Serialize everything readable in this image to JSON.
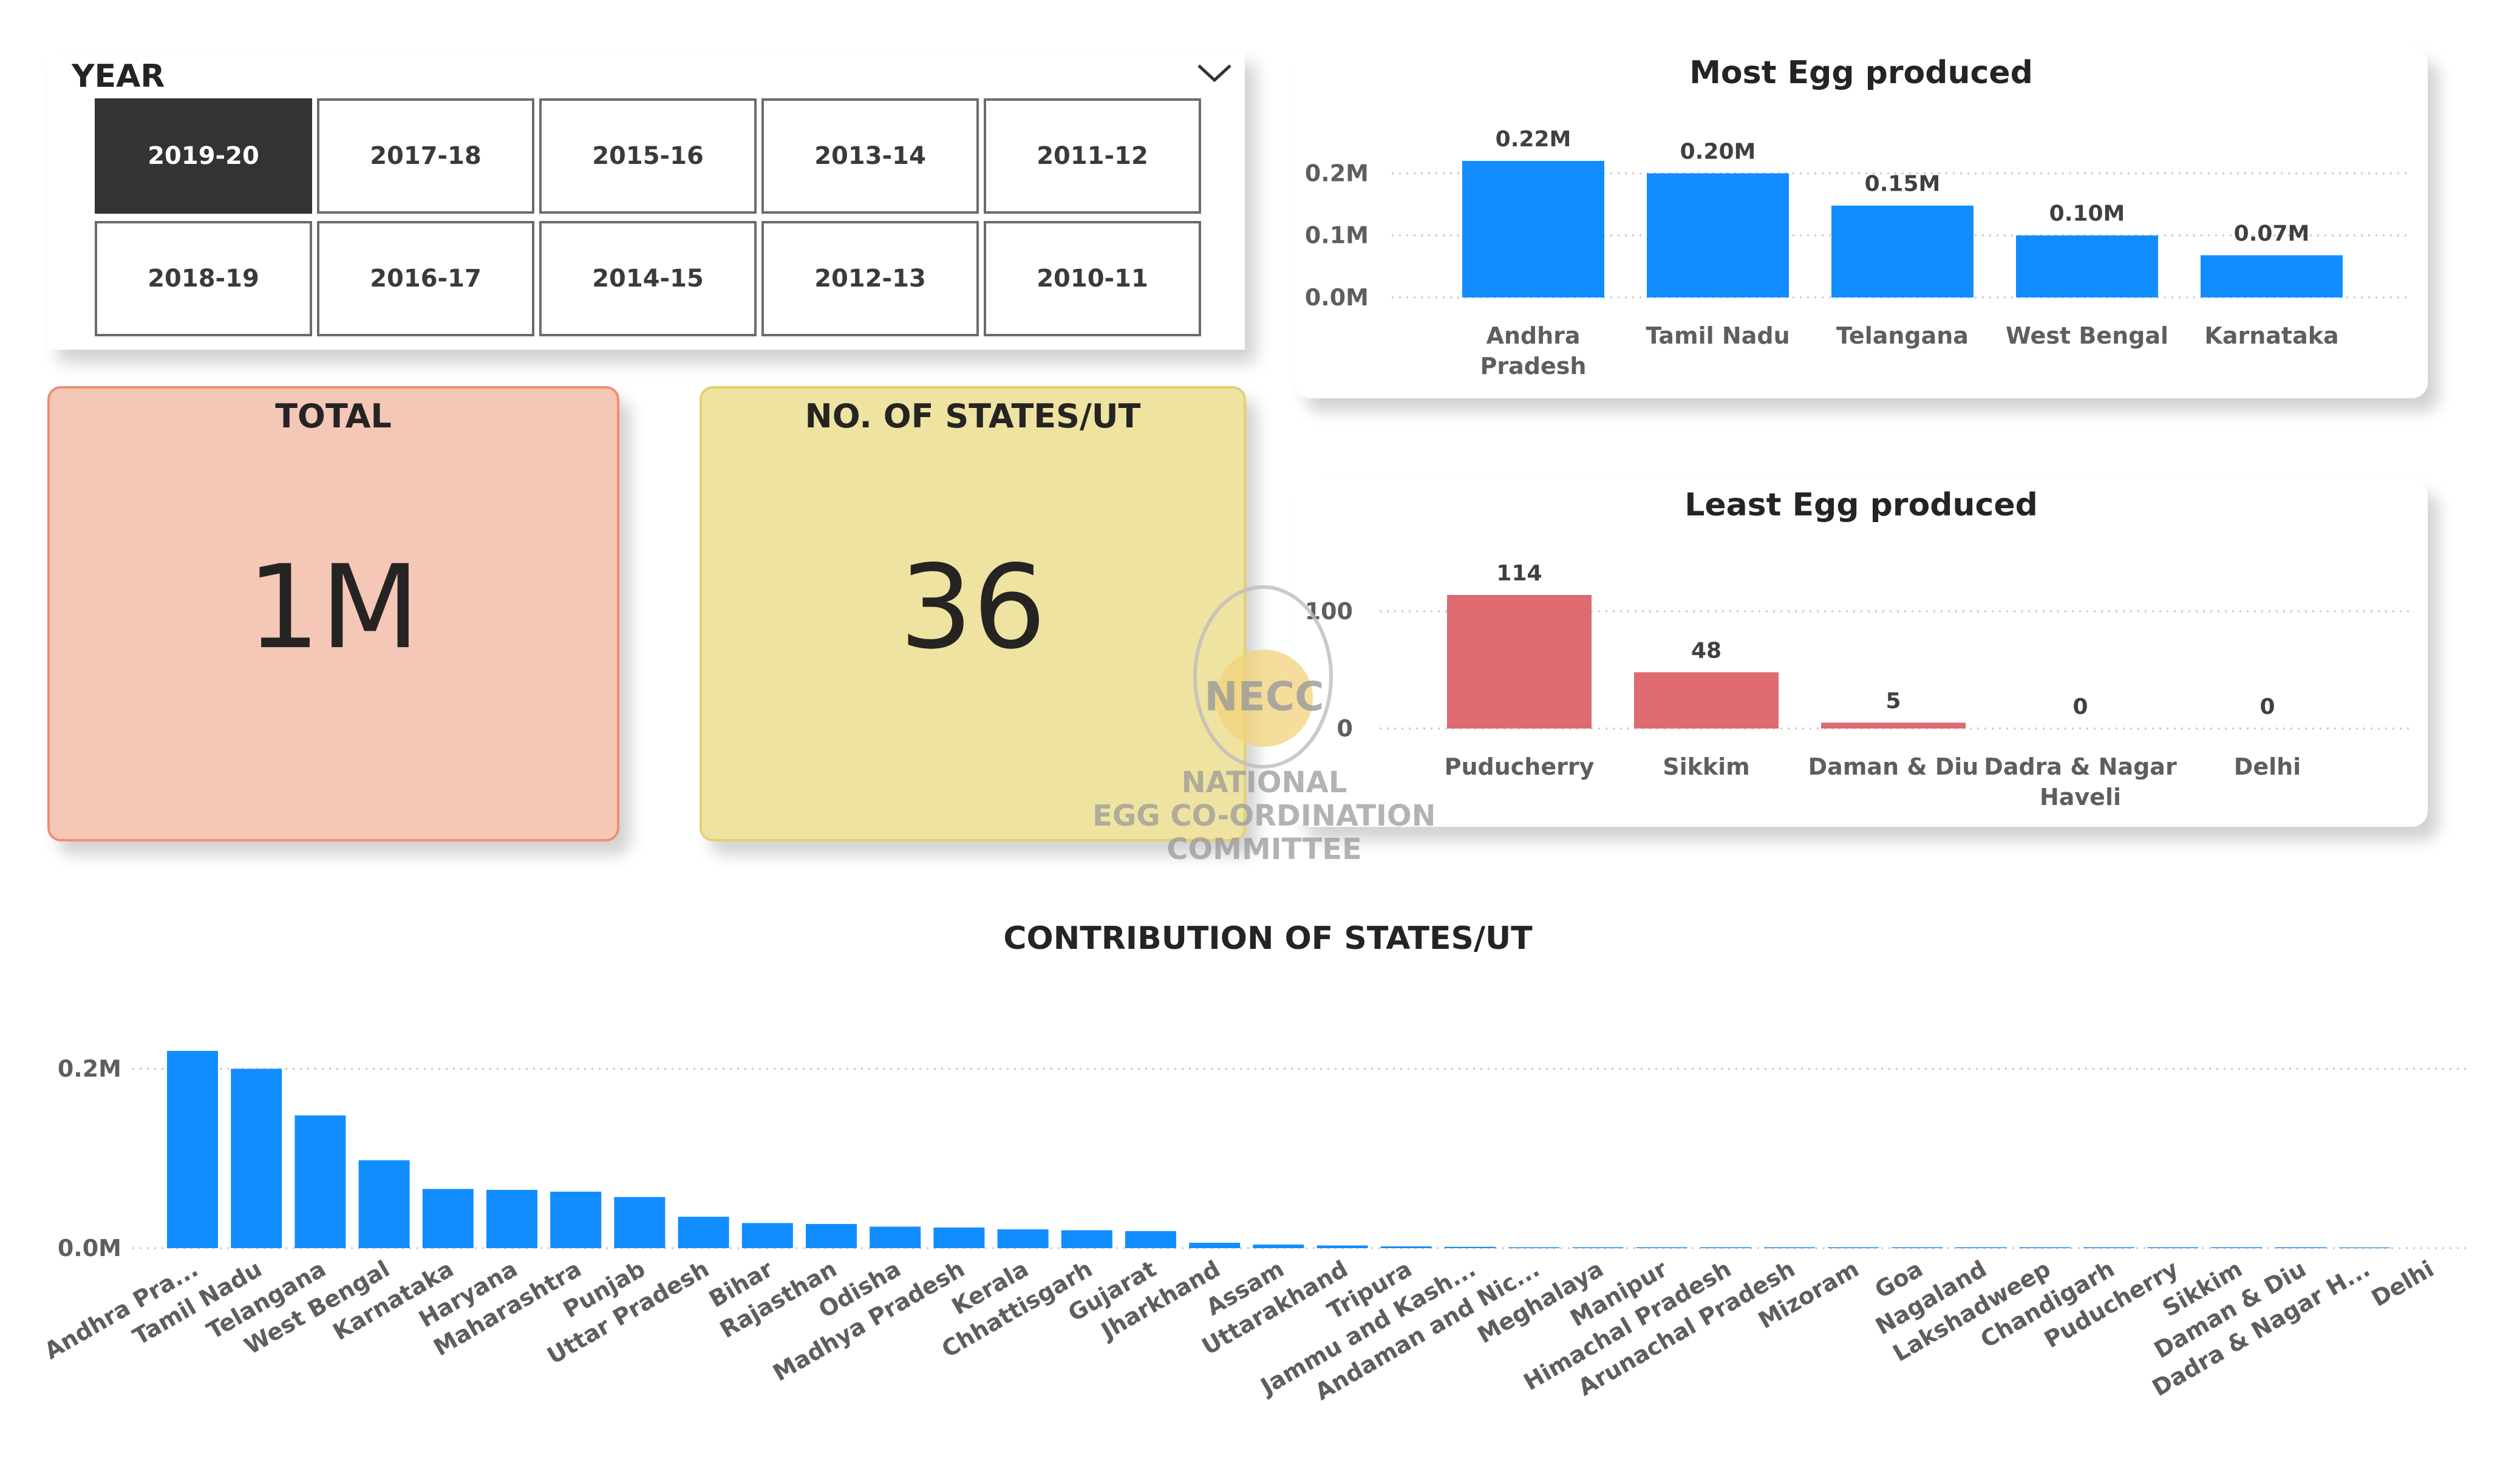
{
  "slicer": {
    "title": "YEAR",
    "selected": "2019-20",
    "years": [
      "2019-20",
      "2017-18",
      "2015-16",
      "2013-14",
      "2011-12",
      "2018-19",
      "2016-17",
      "2014-15",
      "2012-13",
      "2010-11"
    ]
  },
  "kpis": {
    "total_label": "TOTAL",
    "total_value": "1M",
    "states_label": "NO. OF STATES/UT",
    "states_value": "36"
  },
  "logo": {
    "mark": "NECC",
    "line1": "NATIONAL",
    "line2": "EGG CO-ORDINATION",
    "line3": "COMMITTEE"
  },
  "colors": {
    "blue": "#118dff",
    "red": "#dd6b71",
    "total_fill": "#f5c7b6",
    "states_fill": "#eee3a1",
    "selected_tile": "#333333"
  },
  "chart_data": [
    {
      "id": "most",
      "type": "bar",
      "title": "Most Egg produced",
      "categories": [
        "Andhra Pradesh",
        "Tamil Nadu",
        "Telangana",
        "West Bengal",
        "Karnataka"
      ],
      "category_lines": [
        [
          "Andhra",
          "Pradesh"
        ],
        [
          "Tamil Nadu"
        ],
        [
          "Telangana"
        ],
        [
          "West Bengal"
        ],
        [
          "Karnataka"
        ]
      ],
      "values": [
        0.22,
        0.2,
        0.148,
        0.1,
        0.068
      ],
      "data_labels": [
        "0.22M",
        "0.20M",
        "0.15M",
        "0.10M",
        "0.07M"
      ],
      "unit": "M",
      "ylim": [
        0,
        0.22
      ],
      "yticks": [
        {
          "value": 0.2,
          "label": "0.2M"
        },
        {
          "value": 0.1,
          "label": "0.1M"
        },
        {
          "value": 0,
          "label": "0.0M"
        }
      ],
      "color": "#118dff",
      "grid": true
    },
    {
      "id": "least",
      "type": "bar",
      "title": "Least Egg produced",
      "categories": [
        "Puducherry",
        "Sikkim",
        "Daman & Diu",
        "Dadra & Nagar Haveli",
        "Delhi"
      ],
      "category_lines": [
        [
          "Puducherry"
        ],
        [
          "Sikkim"
        ],
        [
          "Daman & Diu"
        ],
        [
          "Dadra & Nagar",
          "Haveli"
        ],
        [
          "Delhi"
        ]
      ],
      "values": [
        114,
        48,
        5,
        0,
        0
      ],
      "data_labels": [
        "114",
        "48",
        "5",
        "0",
        "0"
      ],
      "ylim": [
        0,
        114
      ],
      "yticks": [
        {
          "value": 100,
          "label": "100"
        },
        {
          "value": 0,
          "label": "0"
        }
      ],
      "color": "#dd6b71",
      "grid": true
    },
    {
      "id": "contrib",
      "type": "bar",
      "title": "CONTRIBUTION OF STATES/UT",
      "categories": [
        "Andhra Pra...",
        "Tamil Nadu",
        "Telangana",
        "West Bengal",
        "Karnataka",
        "Haryana",
        "Maharashtra",
        "Punjab",
        "Uttar Pradesh",
        "Bihar",
        "Rajasthan",
        "Odisha",
        "Madhya Pradesh",
        "Kerala",
        "Chhattisgarh",
        "Gujarat",
        "Jharkhand",
        "Assam",
        "Uttarakhand",
        "Tripura",
        "Jammu and Kash...",
        "Andaman and Nic...",
        "Meghalaya",
        "Manipur",
        "Himachal Pradesh",
        "Arunachal Pradesh",
        "Mizoram",
        "Goa",
        "Nagaland",
        "Lakshadweep",
        "Chandigarh",
        "Puducherry",
        "Sikkim",
        "Daman & Diu",
        "Dadra & Nagar H...",
        "Delhi"
      ],
      "values": [
        0.22,
        0.2,
        0.148,
        0.098,
        0.066,
        0.065,
        0.063,
        0.057,
        0.035,
        0.028,
        0.027,
        0.024,
        0.023,
        0.021,
        0.02,
        0.019,
        0.006,
        0.004,
        0.003,
        0.002,
        0.0015,
        0.001,
        0.001,
        0.001,
        0.001,
        0.001,
        0.001,
        0.001,
        0.001,
        0.001,
        0.001,
        0.001,
        0.001,
        0.001,
        0.0008,
        0
      ],
      "unit": "M",
      "ylim": [
        0,
        0.22
      ],
      "yticks": [
        {
          "value": 0.2,
          "label": "0.2M"
        },
        {
          "value": 0,
          "label": "0.0M"
        }
      ],
      "color": "#118dff",
      "grid": true
    }
  ]
}
